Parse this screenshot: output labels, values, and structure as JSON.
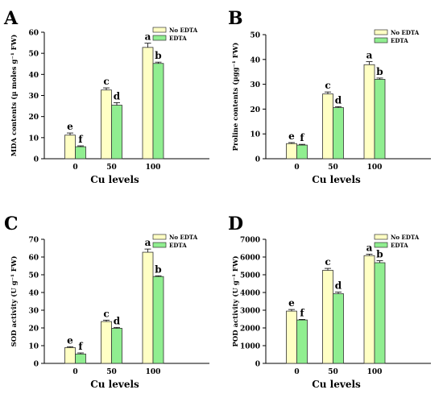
{
  "figure": {
    "panels": [
      {
        "letter": "A",
        "chart_data": {
          "type": "bar",
          "categories": [
            "0",
            "50",
            "100"
          ],
          "series": [
            {
              "name": "No EDTA",
              "values": [
                11.2,
                32.6,
                52.8
              ],
              "errors": [
                1.0,
                1.0,
                2.0
              ],
              "letters": [
                "e",
                "c",
                "a"
              ]
            },
            {
              "name": "EDTA",
              "values": [
                5.7,
                25.4,
                45.2
              ],
              "errors": [
                0.4,
                1.2,
                0.6
              ],
              "letters": [
                "f",
                "d",
                "b"
              ]
            }
          ],
          "xlabel": "Cu levels",
          "ylabel": "MDA contents (µ moles g⁻¹ FW)",
          "ylim": [
            0,
            60
          ],
          "yticks": [
            "0",
            "10",
            "20",
            "30",
            "40",
            "50",
            "60"
          ],
          "legend": "top-right",
          "colors": {
            "no_edta": "#ffffc4",
            "edta": "#90ee90"
          }
        }
      },
      {
        "letter": "B",
        "chart_data": {
          "type": "bar",
          "categories": [
            "0",
            "50",
            "100"
          ],
          "series": [
            {
              "name": "No EDTA",
              "values": [
                6.1,
                26.1,
                37.9
              ],
              "errors": [
                0.4,
                0.8,
                1.2
              ],
              "letters": [
                "e",
                "c",
                "a"
              ]
            },
            {
              "name": "EDTA",
              "values": [
                5.5,
                20.6,
                32.0
              ],
              "errors": [
                0.3,
                0.4,
                0.5
              ],
              "letters": [
                "f",
                "d",
                "b"
              ]
            }
          ],
          "xlabel": "Cu levels",
          "ylabel": "Proline contents (µgg⁻¹ FW)",
          "ylim": [
            0,
            50
          ],
          "yticks": [
            "0",
            "10",
            "20",
            "30",
            "40",
            "50"
          ],
          "legend": "top-right",
          "colors": {
            "no_edta": "#ffffc4",
            "edta": "#90ee90"
          }
        }
      },
      {
        "letter": "C",
        "chart_data": {
          "type": "bar",
          "categories": [
            "0",
            "50",
            "100"
          ],
          "series": [
            {
              "name": "No EDTA",
              "values": [
                8.9,
                23.6,
                62.7
              ],
              "errors": [
                0.5,
                0.8,
                1.8
              ],
              "letters": [
                "e",
                "c",
                "a"
              ]
            },
            {
              "name": "EDTA",
              "values": [
                5.3,
                19.8,
                49.0
              ],
              "errors": [
                0.6,
                0.5,
                0.4
              ],
              "letters": [
                "f",
                "d",
                "b"
              ]
            }
          ],
          "xlabel": "Cu levels",
          "ylabel": "SOD activity (U g⁻¹ FW)",
          "ylim": [
            0,
            70
          ],
          "yticks": [
            "0",
            "10",
            "20",
            "30",
            "40",
            "50",
            "60",
            "70"
          ],
          "legend": "top-right",
          "colors": {
            "no_edta": "#ffffc4",
            "edta": "#90ee90"
          }
        }
      },
      {
        "letter": "D",
        "chart_data": {
          "type": "bar",
          "categories": [
            "0",
            "50",
            "100"
          ],
          "series": [
            {
              "name": "No EDTA",
              "values": [
                2950,
                5250,
                6080
              ],
              "errors": [
                90,
                110,
                80
              ],
              "letters": [
                "e",
                "c",
                "a"
              ]
            },
            {
              "name": "EDTA",
              "values": [
                2450,
                3930,
                5680
              ],
              "errors": [
                30,
                90,
                110
              ],
              "letters": [
                "f",
                "d",
                "b"
              ]
            }
          ],
          "xlabel": "Cu levels",
          "ylabel": "POD activity (U g⁻¹ FW)",
          "ylim": [
            0,
            7000
          ],
          "yticks": [
            "0",
            "1000",
            "2000",
            "3000",
            "4000",
            "5000",
            "6000",
            "7000"
          ],
          "legend": "top-right",
          "colors": {
            "no_edta": "#ffffc4",
            "edta": "#90ee90"
          }
        }
      }
    ]
  }
}
